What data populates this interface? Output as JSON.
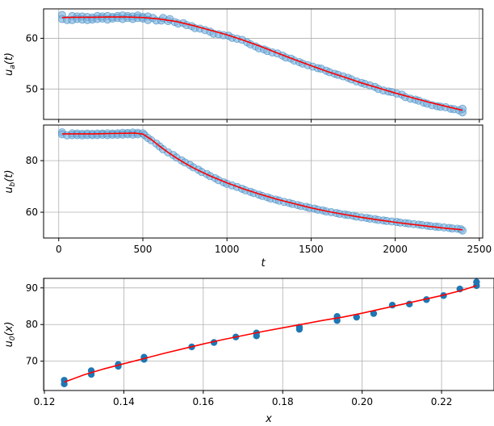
{
  "chart_data": [
    {
      "type": "scatter",
      "panel": "top",
      "ylabel": "u_a(t)",
      "ylabel_main": "u",
      "ylabel_sub": "a",
      "ylabel_suffix": "(t)",
      "xlim": [
        -90,
        2520
      ],
      "ylim": [
        44.0,
        65.8
      ],
      "xticks": [
        0,
        500,
        1000,
        1500,
        2000,
        2500
      ],
      "yticks": [
        50,
        60
      ],
      "show_xtick_labels": false,
      "grid": true,
      "scatter_color": "#1f77b4",
      "line_color": "#ff0000",
      "points": [
        [
          20,
          64.6
        ],
        [
          20,
          63.8
        ],
        [
          50,
          63.6
        ],
        [
          80,
          64.4
        ],
        [
          80,
          63.6
        ],
        [
          110,
          64.3
        ],
        [
          110,
          63.8
        ],
        [
          140,
          64.3
        ],
        [
          140,
          63.7
        ],
        [
          170,
          64.2
        ],
        [
          170,
          63.6
        ],
        [
          200,
          64.1
        ],
        [
          200,
          63.7
        ],
        [
          230,
          64.4
        ],
        [
          230,
          63.8
        ],
        [
          260,
          64.3
        ],
        [
          260,
          63.9
        ],
        [
          290,
          64.4
        ],
        [
          290,
          63.7
        ],
        [
          320,
          64.2
        ],
        [
          320,
          63.9
        ],
        [
          350,
          64.4
        ],
        [
          350,
          64.0
        ],
        [
          380,
          64.5
        ],
        [
          380,
          63.8
        ],
        [
          410,
          64.4
        ],
        [
          410,
          64.0
        ],
        [
          440,
          64.3
        ],
        [
          440,
          63.8
        ],
        [
          470,
          64.5
        ],
        [
          470,
          64.0
        ],
        [
          500,
          64.2
        ],
        [
          500,
          63.9
        ],
        [
          530,
          64.3
        ],
        [
          530,
          63.6
        ],
        [
          560,
          64.0
        ],
        [
          580,
          63.5
        ],
        [
          610,
          63.5
        ],
        [
          620,
          64.0
        ],
        [
          650,
          63.4
        ],
        [
          660,
          63.8
        ],
        [
          690,
          63.2
        ],
        [
          710,
          62.9
        ],
        [
          740,
          63.0
        ],
        [
          760,
          62.6
        ],
        [
          790,
          62.4
        ],
        [
          810,
          62.0
        ],
        [
          840,
          61.9
        ],
        [
          870,
          61.6
        ],
        [
          900,
          61.3
        ],
        [
          920,
          60.9
        ],
        [
          950,
          60.8
        ],
        [
          980,
          60.6
        ],
        [
          1010,
          60.5
        ],
        [
          1030,
          60.1
        ],
        [
          1060,
          59.9
        ],
        [
          1090,
          59.7
        ],
        [
          1120,
          59.2
        ],
        [
          1140,
          58.8
        ],
        [
          1170,
          58.4
        ],
        [
          1190,
          58.0
        ],
        [
          1220,
          57.8
        ],
        [
          1240,
          57.5
        ],
        [
          1270,
          57.2
        ],
        [
          1300,
          57.0
        ],
        [
          1330,
          56.6
        ],
        [
          1350,
          56.2
        ],
        [
          1380,
          56.0
        ],
        [
          1400,
          55.6
        ],
        [
          1430,
          55.3
        ],
        [
          1450,
          55.0
        ],
        [
          1480,
          54.7
        ],
        [
          1510,
          54.4
        ],
        [
          1540,
          54.1
        ],
        [
          1560,
          54.0
        ],
        [
          1590,
          53.6
        ],
        [
          1610,
          53.3
        ],
        [
          1640,
          53.0
        ],
        [
          1660,
          52.8
        ],
        [
          1690,
          52.5
        ],
        [
          1720,
          52.2
        ],
        [
          1740,
          51.9
        ],
        [
          1770,
          51.5
        ],
        [
          1800,
          51.2
        ],
        [
          1820,
          51.0
        ],
        [
          1850,
          50.7
        ],
        [
          1880,
          50.4
        ],
        [
          1900,
          50.0
        ],
        [
          1930,
          49.7
        ],
        [
          1960,
          49.5
        ],
        [
          1980,
          49.4
        ],
        [
          2010,
          49.1
        ],
        [
          2040,
          48.9
        ],
        [
          2060,
          48.4
        ],
        [
          2090,
          48.1
        ],
        [
          2120,
          47.9
        ],
        [
          2140,
          47.7
        ],
        [
          2170,
          47.3
        ],
        [
          2190,
          47.1
        ],
        [
          2220,
          46.8
        ],
        [
          2250,
          46.6
        ],
        [
          2270,
          46.5
        ],
        [
          2300,
          46.4
        ],
        [
          2330,
          46.1
        ],
        [
          2350,
          46.0
        ],
        [
          2380,
          45.8
        ],
        [
          2400,
          45.4
        ],
        [
          2400,
          46.1
        ]
      ],
      "fit": [
        [
          20,
          64.1
        ],
        [
          100,
          64.15
        ],
        [
          200,
          64.15
        ],
        [
          300,
          64.2
        ],
        [
          400,
          64.2
        ],
        [
          500,
          64.1
        ],
        [
          600,
          63.8
        ],
        [
          700,
          63.3
        ],
        [
          800,
          62.5
        ],
        [
          900,
          61.6
        ],
        [
          1000,
          60.7
        ],
        [
          1100,
          59.6
        ],
        [
          1200,
          58.4
        ],
        [
          1300,
          57.1
        ],
        [
          1400,
          55.8
        ],
        [
          1500,
          54.6
        ],
        [
          1600,
          53.4
        ],
        [
          1700,
          52.3
        ],
        [
          1800,
          51.2
        ],
        [
          1900,
          50.2
        ],
        [
          2000,
          49.2
        ],
        [
          2100,
          48.3
        ],
        [
          2200,
          47.4
        ],
        [
          2300,
          46.6
        ],
        [
          2400,
          45.8
        ]
      ]
    },
    {
      "type": "scatter",
      "panel": "middle",
      "ylabel": "u_b(t)",
      "ylabel_main": "u",
      "ylabel_sub": "b",
      "ylabel_suffix": "(t)",
      "xlabel": "t",
      "xlim": [
        -90,
        2520
      ],
      "ylim": [
        50.0,
        93.8
      ],
      "xticks": [
        0,
        500,
        1000,
        1500,
        2000,
        2500
      ],
      "xtick_labels": [
        "0",
        "500",
        "1000",
        "1500",
        "2000",
        "2500"
      ],
      "yticks": [
        60,
        80
      ],
      "show_xtick_labels": true,
      "grid": true,
      "scatter_color": "#1f77b4",
      "line_color": "#ff0000",
      "points": [
        [
          20,
          91.0
        ],
        [
          20,
          90.2
        ],
        [
          50,
          89.8
        ],
        [
          80,
          90.6
        ],
        [
          80,
          89.9
        ],
        [
          110,
          90.5
        ],
        [
          110,
          89.9
        ],
        [
          140,
          90.4
        ],
        [
          140,
          89.8
        ],
        [
          170,
          90.5
        ],
        [
          170,
          89.9
        ],
        [
          200,
          90.4
        ],
        [
          200,
          89.9
        ],
        [
          230,
          90.5
        ],
        [
          230,
          89.9
        ],
        [
          260,
          90.5
        ],
        [
          260,
          90.0
        ],
        [
          290,
          90.6
        ],
        [
          290,
          89.9
        ],
        [
          320,
          90.5
        ],
        [
          320,
          90.0
        ],
        [
          350,
          90.6
        ],
        [
          350,
          90.0
        ],
        [
          380,
          90.8
        ],
        [
          380,
          90.1
        ],
        [
          410,
          90.7
        ],
        [
          410,
          90.2
        ],
        [
          440,
          90.9
        ],
        [
          440,
          90.1
        ],
        [
          470,
          90.8
        ],
        [
          470,
          90.2
        ],
        [
          500,
          90.6
        ],
        [
          510,
          89.9
        ],
        [
          530,
          88.8
        ],
        [
          550,
          87.9
        ],
        [
          580,
          86.6
        ],
        [
          600,
          85.5
        ],
        [
          620,
          84.4
        ],
        [
          650,
          83.2
        ],
        [
          680,
          82.2
        ],
        [
          700,
          81.2
        ],
        [
          730,
          80.1
        ],
        [
          750,
          79.3
        ],
        [
          780,
          78.3
        ],
        [
          800,
          77.4
        ],
        [
          830,
          76.5
        ],
        [
          850,
          75.6
        ],
        [
          880,
          74.8
        ],
        [
          900,
          74.0
        ],
        [
          930,
          73.2
        ],
        [
          950,
          72.4
        ],
        [
          980,
          71.6
        ],
        [
          1000,
          71.0
        ],
        [
          1030,
          70.4
        ],
        [
          1060,
          69.8
        ],
        [
          1090,
          69.1
        ],
        [
          1110,
          68.5
        ],
        [
          1140,
          67.9
        ],
        [
          1160,
          67.4
        ],
        [
          1190,
          66.8
        ],
        [
          1210,
          66.3
        ],
        [
          1240,
          65.8
        ],
        [
          1260,
          65.3
        ],
        [
          1290,
          64.9
        ],
        [
          1310,
          64.5
        ],
        [
          1340,
          64.0
        ],
        [
          1370,
          63.6
        ],
        [
          1390,
          63.2
        ],
        [
          1420,
          62.8
        ],
        [
          1440,
          62.4
        ],
        [
          1470,
          62.1
        ],
        [
          1490,
          61.7
        ],
        [
          1520,
          61.4
        ],
        [
          1540,
          61.0
        ],
        [
          1570,
          60.7
        ],
        [
          1590,
          60.3
        ],
        [
          1620,
          60.0
        ],
        [
          1650,
          59.7
        ],
        [
          1670,
          59.4
        ],
        [
          1700,
          59.1
        ],
        [
          1720,
          58.9
        ],
        [
          1750,
          58.6
        ],
        [
          1770,
          58.3
        ],
        [
          1800,
          58.0
        ],
        [
          1830,
          57.8
        ],
        [
          1850,
          57.5
        ],
        [
          1880,
          57.3
        ],
        [
          1900,
          57.0
        ],
        [
          1930,
          56.8
        ],
        [
          1950,
          56.6
        ],
        [
          1980,
          56.4
        ],
        [
          2010,
          56.2
        ],
        [
          2030,
          56.0
        ],
        [
          2060,
          55.8
        ],
        [
          2080,
          55.6
        ],
        [
          2110,
          55.4
        ],
        [
          2140,
          55.2
        ],
        [
          2160,
          55.0
        ],
        [
          2190,
          54.8
        ],
        [
          2210,
          54.6
        ],
        [
          2240,
          54.4
        ],
        [
          2260,
          54.3
        ],
        [
          2290,
          54.1
        ],
        [
          2320,
          53.9
        ],
        [
          2340,
          53.7
        ],
        [
          2370,
          53.6
        ],
        [
          2390,
          53.4
        ],
        [
          2400,
          52.9
        ]
      ],
      "fit": [
        [
          20,
          90.4
        ],
        [
          100,
          90.4
        ],
        [
          200,
          90.4
        ],
        [
          300,
          90.5
        ],
        [
          400,
          90.6
        ],
        [
          450,
          90.7
        ],
        [
          500,
          90.3
        ],
        [
          550,
          88.2
        ],
        [
          600,
          85.6
        ],
        [
          650,
          83.2
        ],
        [
          700,
          81.0
        ],
        [
          750,
          79.0
        ],
        [
          800,
          77.2
        ],
        [
          850,
          75.6
        ],
        [
          900,
          74.1
        ],
        [
          950,
          72.7
        ],
        [
          1000,
          71.4
        ],
        [
          1100,
          69.0
        ],
        [
          1200,
          66.9
        ],
        [
          1300,
          65.0
        ],
        [
          1400,
          63.3
        ],
        [
          1500,
          61.7
        ],
        [
          1600,
          60.3
        ],
        [
          1700,
          59.1
        ],
        [
          1800,
          58.0
        ],
        [
          1900,
          57.0
        ],
        [
          2000,
          56.1
        ],
        [
          2100,
          55.3
        ],
        [
          2200,
          54.5
        ],
        [
          2300,
          53.8
        ],
        [
          2400,
          53.2
        ]
      ]
    },
    {
      "type": "scatter",
      "panel": "bottom",
      "ylabel": "u_0(x)",
      "ylabel_main": "u",
      "ylabel_sub": "0",
      "ylabel_suffix": "(x)",
      "xlabel": "x",
      "xlim": [
        0.1198,
        0.2332
      ],
      "ylim": [
        62.0,
        92.6
      ],
      "xticks": [
        0.12,
        0.14,
        0.16,
        0.18,
        0.2,
        0.22
      ],
      "xtick_labels": [
        "0.12",
        "0.14",
        "0.16",
        "0.18",
        "0.20",
        "0.22"
      ],
      "yticks": [
        70,
        80,
        90
      ],
      "show_xtick_labels": true,
      "grid": true,
      "scatter_color": "#1f77b4",
      "line_color": "#ff0000",
      "points": [
        [
          0.125,
          63.8
        ],
        [
          0.125,
          64.8
        ],
        [
          0.1318,
          66.4
        ],
        [
          0.1318,
          67.4
        ],
        [
          0.1386,
          68.6
        ],
        [
          0.1386,
          69.1
        ],
        [
          0.1451,
          70.5
        ],
        [
          0.1451,
          71.1
        ],
        [
          0.1571,
          73.9
        ],
        [
          0.1627,
          75.1
        ],
        [
          0.1682,
          76.6
        ],
        [
          0.1734,
          76.9
        ],
        [
          0.1734,
          77.7
        ],
        [
          0.1842,
          78.7
        ],
        [
          0.1842,
          79.3
        ],
        [
          0.1937,
          81.1
        ],
        [
          0.1937,
          82.2
        ],
        [
          0.1986,
          82.0
        ],
        [
          0.2029,
          83.0
        ],
        [
          0.2076,
          85.3
        ],
        [
          0.2119,
          85.6
        ],
        [
          0.2162,
          86.8
        ],
        [
          0.2205,
          87.9
        ],
        [
          0.2246,
          89.7
        ],
        [
          0.2288,
          90.6
        ],
        [
          0.2288,
          91.6
        ]
      ],
      "fit": [
        [
          0.125,
          64.3
        ],
        [
          0.13,
          66.3
        ],
        [
          0.135,
          67.9
        ],
        [
          0.14,
          69.3
        ],
        [
          0.145,
          70.7
        ],
        [
          0.15,
          72.1
        ],
        [
          0.155,
          73.4
        ],
        [
          0.16,
          74.7
        ],
        [
          0.165,
          75.9
        ],
        [
          0.17,
          77.0
        ],
        [
          0.175,
          78.1
        ],
        [
          0.18,
          79.1
        ],
        [
          0.185,
          80.1
        ],
        [
          0.19,
          81.1
        ],
        [
          0.195,
          82.0
        ],
        [
          0.2,
          83.1
        ],
        [
          0.205,
          84.3
        ],
        [
          0.21,
          85.5
        ],
        [
          0.215,
          86.7
        ],
        [
          0.22,
          87.9
        ],
        [
          0.225,
          89.3
        ],
        [
          0.2288,
          90.6
        ]
      ]
    }
  ]
}
